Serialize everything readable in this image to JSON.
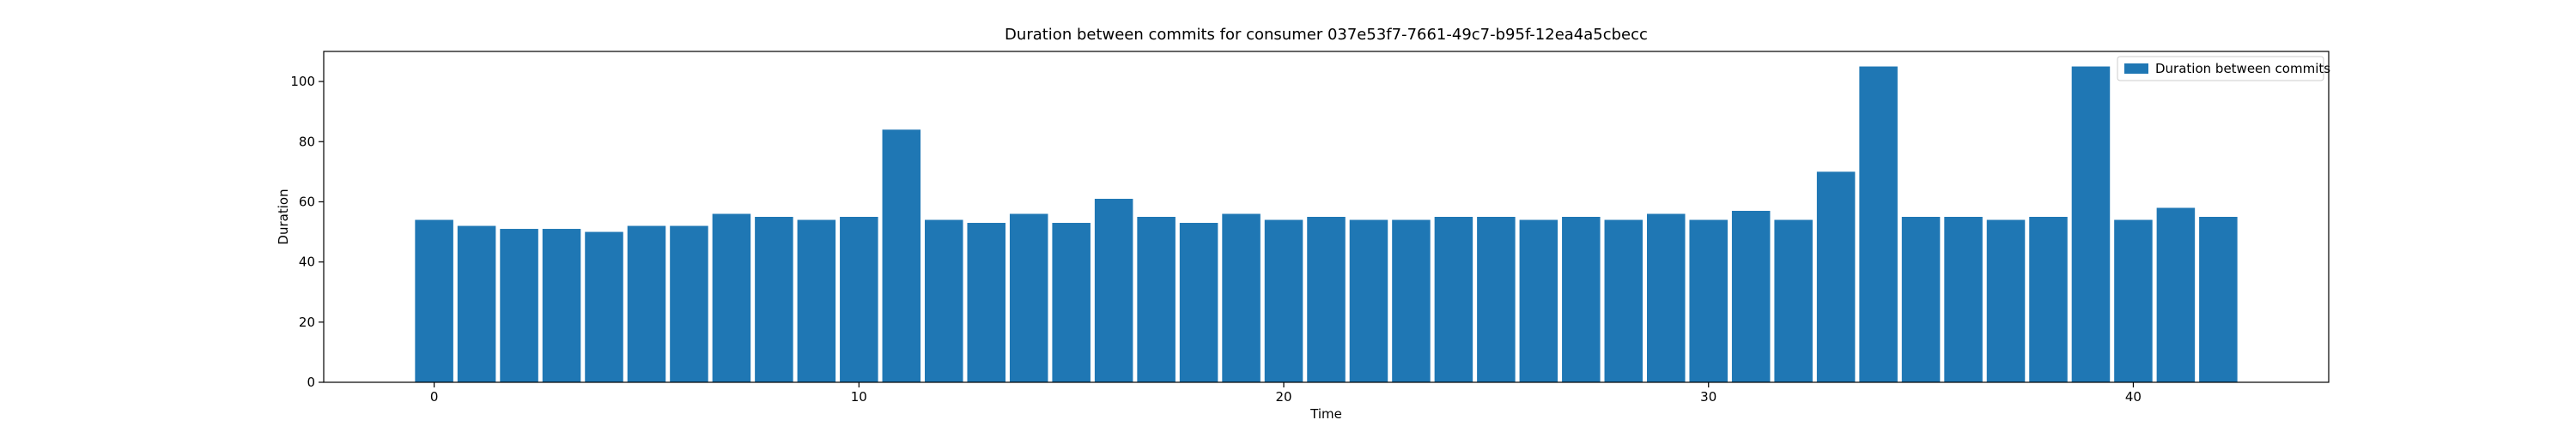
{
  "chart_data": {
    "type": "bar",
    "title": "Duration between commits for consumer 037e53f7-7661-49c7-b95f-12ea4a5cbecc",
    "xlabel": "Time",
    "ylabel": "Duration",
    "x": [
      0,
      1,
      2,
      3,
      4,
      5,
      6,
      7,
      8,
      9,
      10,
      11,
      12,
      13,
      14,
      15,
      16,
      17,
      18,
      19,
      20,
      21,
      22,
      23,
      24,
      25,
      26,
      27,
      28,
      29,
      30,
      31,
      32,
      33,
      34,
      35,
      36,
      37,
      38,
      39,
      40,
      41,
      42
    ],
    "values": [
      54,
      52,
      51,
      51,
      50,
      52,
      52,
      56,
      55,
      54,
      55,
      84,
      54,
      53,
      56,
      53,
      61,
      55,
      53,
      56,
      54,
      55,
      54,
      54,
      55,
      55,
      54,
      55,
      54,
      56,
      54,
      57,
      54,
      70,
      105,
      55,
      55,
      54,
      55,
      105,
      54,
      58,
      55
    ],
    "xlim": [
      -2.6,
      44.6
    ],
    "ylim": [
      0,
      110
    ],
    "xticks": [
      0,
      10,
      20,
      30,
      40
    ],
    "yticks": [
      0,
      20,
      40,
      60,
      80,
      100
    ],
    "legend": {
      "entries": [
        "Duration between commits"
      ],
      "placement": "top-right"
    },
    "grid": false,
    "color": "#1f77b4"
  }
}
